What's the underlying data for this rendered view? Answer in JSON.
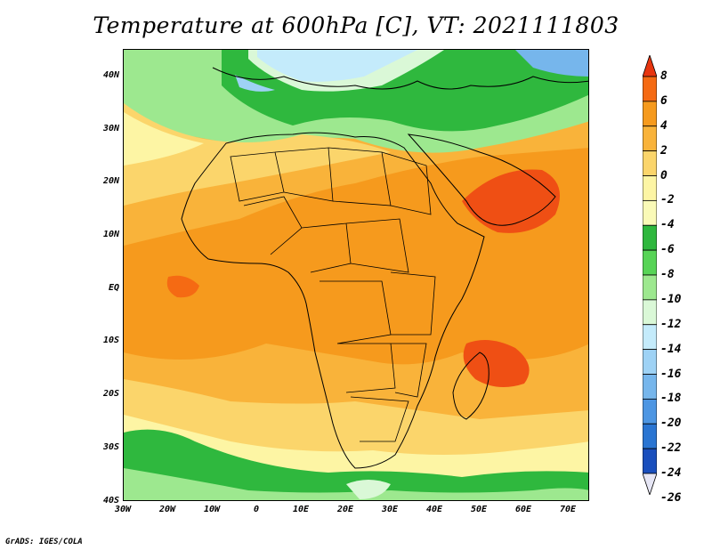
{
  "title": "Temperature at 600hPa [C], VT: 2021111803",
  "credit": "GrADS: IGES/COLA",
  "map": {
    "lat_labels": [
      "40N",
      "30N",
      "20N",
      "10N",
      "EQ",
      "10S",
      "20S",
      "30S",
      "40S"
    ],
    "lon_labels": [
      "30W",
      "20W",
      "10W",
      "0",
      "10E",
      "20E",
      "30E",
      "40E",
      "50E",
      "60E",
      "70E"
    ],
    "extent": {
      "lon_min": -30,
      "lon_max": 75,
      "lat_min": -40,
      "lat_max": 45
    }
  },
  "colorbar": {
    "labels": [
      "8",
      "6",
      "4",
      "2",
      "0",
      "-2",
      "-4",
      "-6",
      "-8",
      "-10",
      "-12",
      "-14",
      "-16",
      "-18",
      "-20",
      "-22",
      "-24",
      "-26"
    ],
    "colors": [
      "#e7350f",
      "#f56a13",
      "#f69a1d",
      "#f9b33a",
      "#fbd56b",
      "#fdf5a4",
      "#fafab7",
      "#2fb83e",
      "#57d456",
      "#9de88f",
      "#daf8d7",
      "#c4ebfb",
      "#9ed2f5",
      "#76b6ec",
      "#4d96e3",
      "#2a75d2",
      "#1a4fbd",
      "#0d1e7a"
    ]
  },
  "field_colors": {
    "warm_red": "#ef4f14",
    "orange": "#f69a1d",
    "light_orange": "#f9b33a",
    "yellow": "#fbd56b",
    "pale_yellow": "#fdf5a4",
    "green": "#2fb83e",
    "light_green": "#9de88f",
    "pale_blue": "#c4ebfb",
    "blue": "#76b6ec"
  }
}
